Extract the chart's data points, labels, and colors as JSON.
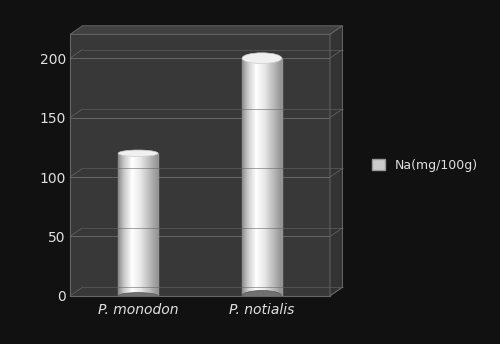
{
  "categories": [
    "P. monodon",
    "P. notialis"
  ],
  "values": [
    120,
    200
  ],
  "background_color": "#111111",
  "plot_bg_color": "#383838",
  "plot_bg_dark": "#2a2a2a",
  "grid_color": "#666666",
  "text_color": "#e0e0e0",
  "legend_label": "Na(mg/100g)",
  "ylim": [
    0,
    220
  ],
  "yticks": [
    0,
    50,
    100,
    150,
    200
  ],
  "bar_width": 0.32,
  "tick_fontsize": 10,
  "legend_fontsize": 9
}
